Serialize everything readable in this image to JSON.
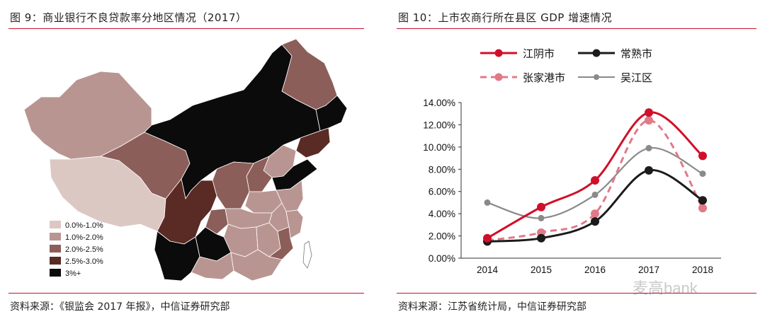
{
  "left": {
    "title": "图 9：商业银行不良贷款率分地区情况（2017）",
    "source": "资料来源：《银监会 2017 年报》，中信证券研究部",
    "legend": [
      {
        "label": "0.0%-1.0%",
        "color": "#dcc8c3"
      },
      {
        "label": "1.0%-2.0%",
        "color": "#b99592"
      },
      {
        "label": "2.0%-2.5%",
        "color": "#8c5e59"
      },
      {
        "label": "2.5%-3.0%",
        "color": "#5a2a24"
      },
      {
        "label": "3%+",
        "color": "#0b0b0b"
      }
    ]
  },
  "right": {
    "title": "图 10：上市农商行所在县区 GDP 增速情况",
    "source": "资料来源：江苏省统计局，中信证券研究部",
    "watermark": "麦高bank"
  },
  "chart_data": {
    "type": "line",
    "x": [
      "2014",
      "2015",
      "2016",
      "2017",
      "2018"
    ],
    "ylim": [
      0,
      14
    ],
    "yticks": [
      "0.00%",
      "2.00%",
      "4.00%",
      "6.00%",
      "8.00%",
      "10.00%",
      "12.00%",
      "14.00%"
    ],
    "series": [
      {
        "name": "江阴市",
        "values": [
          1.8,
          4.6,
          7.0,
          13.1,
          9.2
        ],
        "color": "#d0102a",
        "dash": false
      },
      {
        "name": "常熟市",
        "values": [
          1.5,
          1.8,
          3.3,
          7.9,
          5.2
        ],
        "color": "#1b1b1b",
        "dash": false
      },
      {
        "name": "张家港市",
        "values": [
          1.6,
          2.3,
          4.0,
          12.4,
          4.5
        ],
        "color": "#e07a88",
        "dash": true
      },
      {
        "name": "吴江区",
        "values": [
          5.0,
          3.6,
          5.7,
          9.9,
          7.6
        ],
        "color": "#8a8a8a",
        "dash": false
      }
    ]
  }
}
